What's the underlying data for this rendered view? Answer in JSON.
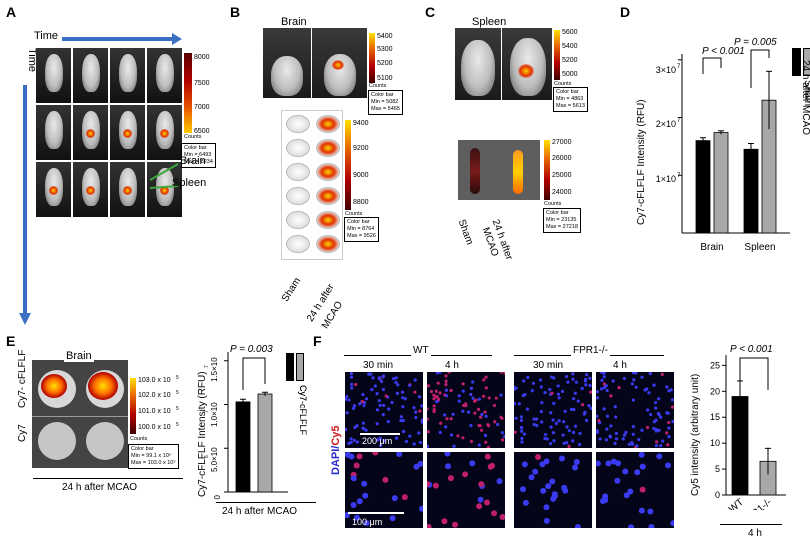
{
  "panels": {
    "A": "A",
    "B": "B",
    "C": "C",
    "D": "D",
    "E": "E",
    "F": "F"
  },
  "A": {
    "time_h": "Time",
    "time_v": "Time",
    "ticks": [
      "8000",
      "7500",
      "7000",
      "6500"
    ],
    "counts": "Counts",
    "colorbar": "Color bar\nMin = 6493\nMax = 8234",
    "brain": "Brain",
    "spleen": "Spleen"
  },
  "B": {
    "title": "Brain",
    "top_ticks": [
      "5400",
      "5300",
      "5200",
      "5100"
    ],
    "top_counts": "Counts",
    "top_colorbar": "Color bar\nMin = 5082\nMax = 5465",
    "bot_ticks": [
      "9400",
      "9200",
      "9000",
      "8800"
    ],
    "bot_counts": "Counts",
    "bot_colorbar": "Color bar\nMin = 8764\nMax = 9526",
    "sham": "Sham",
    "mcao1": "24 h after",
    "mcao2": "MCAO"
  },
  "C": {
    "title": "Spleen",
    "top_ticks": [
      "5600",
      "5400",
      "5200",
      "5000"
    ],
    "top_counts": "Counts",
    "top_colorbar": "Color bar\nMin = 4863\nMax = 5613",
    "bot_ticks": [
      "27000",
      "26000",
      "25000",
      "24000"
    ],
    "bot_counts": "Counts",
    "bot_colorbar": "Color bar\nMin = 23135\nMax = 27218",
    "sham": "Sham",
    "mcao1": "24 h after",
    "mcao2": "MCAO"
  },
  "E": {
    "title": "Brain",
    "row1": "Cy7- cFLFLF",
    "row2": "Cy7",
    "ticks": [
      "103.0 x 10",
      "102.0 x 10",
      "101.0 x 10",
      "100.0 x 10"
    ],
    "exp": "5",
    "counts": "Counts",
    "colorbar": "Color bar\nMin = 99.1 x 10⁵\nMax = 103.0 x 10⁵",
    "bottom": "24 h after MCAO"
  },
  "F": {
    "wt": "WT",
    "ko": "FPR1-/-",
    "t30a": "30 min",
    "t4a": "4 h",
    "t30b": "30 min",
    "t4b": "4 h",
    "ylab_dapi": "DAPI/",
    "ylab_cy5": "Cy5",
    "scale1": "200 μm",
    "scale2": "100 μm"
  },
  "charts": {
    "D": {
      "ylabel": "Cy7-cFLFLF Intensity (RFU)",
      "pval1": "P < 0.001",
      "pval2": "P = 0.005",
      "ticks": [
        "3×10",
        "2×10",
        "1×10"
      ],
      "exp": "7",
      "legend": [
        "Sham",
        "24 h after MCAO"
      ]
    },
    "E": {
      "ylabel": "Cy7-cFLFLF Intensity (RFU)",
      "pval": "P = 0.003",
      "ticks": [
        "1.5×10",
        "1.0×10",
        "5.0×10",
        "0"
      ],
      "exps": [
        "7",
        "7",
        "6"
      ],
      "legend": [
        "Cy7",
        "Cy7-cFLFLF"
      ],
      "xlabel": "24 h after MCAO"
    },
    "F": {
      "ylabel": "Cy5 intensity (arbitrary unit)",
      "pval": "P < 0.001",
      "ticks": [
        "25",
        "20",
        "15",
        "10",
        "5",
        "0"
      ],
      "xlabel": "4 h"
    }
  },
  "chart_data": [
    {
      "type": "bar",
      "panel": "D",
      "categories": [
        "Brain",
        "Spleen"
      ],
      "series": [
        {
          "name": "Sham",
          "values": [
            16000000,
            14500000
          ],
          "errors": [
            500000,
            1000000
          ]
        },
        {
          "name": "24 h after MCAO",
          "values": [
            17400000,
            23000000
          ],
          "errors": [
            300000,
            5000000
          ]
        }
      ],
      "ylabel": "Cy7-cFLFLF Intensity (RFU)",
      "ylim": [
        0,
        31000000
      ],
      "colors": {
        "Sham": "#000000",
        "24 h after MCAO": "#a8a8a8"
      }
    },
    {
      "type": "bar",
      "panel": "E",
      "categories": [
        "Cy7",
        "Cy7-cFLFLF"
      ],
      "values": [
        10300000,
        11200000
      ],
      "errors": [
        300000,
        200000
      ],
      "ylabel": "Cy7-cFLFLF Intensity (RFU)",
      "xlabel": "24 h after MCAO",
      "ylim": [
        0,
        16000000
      ],
      "colors": {
        "Cy7": "#000000",
        "Cy7-cFLFLF": "#a8a8a8"
      }
    },
    {
      "type": "bar",
      "panel": "F",
      "categories": [
        "WT",
        "FPR1-/-"
      ],
      "values": [
        19,
        6.5
      ],
      "errors": [
        3,
        2.5
      ],
      "ylabel": "Cy5 intensity (arbitrary unit)",
      "xlabel": "4 h",
      "ylim": [
        0,
        27
      ],
      "colors": {
        "WT": "#000000",
        "FPR1-/-": "#a8a8a8"
      }
    }
  ]
}
